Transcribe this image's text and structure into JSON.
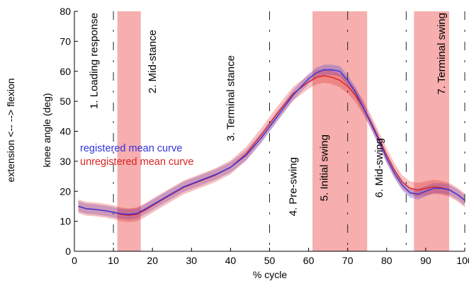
{
  "chart_data": {
    "type": "line",
    "xlabel": "% cycle",
    "ylabel": "knee angle (deg)",
    "side_label": "extension <-- --> flexion",
    "xlim": [
      0,
      100
    ],
    "ylim": [
      0,
      80
    ],
    "xticks": [
      0,
      10,
      20,
      30,
      40,
      50,
      60,
      70,
      80,
      90,
      100
    ],
    "yticks": [
      0,
      10,
      20,
      30,
      40,
      50,
      60,
      70,
      80
    ],
    "grid": false,
    "legend": [
      {
        "label": "registered mean curve",
        "color": "#3333dd"
      },
      {
        "label": "unregistered mean curve",
        "color": "#dd2222"
      }
    ],
    "shaded_regions": [
      {
        "x0": 11,
        "x1": 17,
        "color": "#f4a0a0"
      },
      {
        "x0": 61,
        "x1": 75,
        "color": "#f4a0a0"
      },
      {
        "x0": 87,
        "x1": 96,
        "color": "#f4a0a0"
      }
    ],
    "dashed_lines": [
      10,
      50,
      70,
      85,
      100
    ],
    "phase_labels": [
      {
        "text": "1. Loading response",
        "x": 5
      },
      {
        "text": "2. Mid-stance",
        "x": 20
      },
      {
        "text": "3. Terminal stance",
        "x": 40
      },
      {
        "text": "4. Pre-swing",
        "x": 56
      },
      {
        "text": "5. Initial swing",
        "x": 64
      },
      {
        "text": "6. Mid-swing",
        "x": 78
      },
      {
        "text": "7. Terminal swing",
        "x": 94
      }
    ],
    "series": [
      {
        "name": "registered mean curve",
        "color": "#3333dd",
        "band": 1.7,
        "x": [
          1,
          3,
          5,
          8,
          10,
          12,
          14,
          16,
          18,
          20,
          24,
          28,
          32,
          36,
          40,
          44,
          48,
          52,
          56,
          60,
          62,
          64,
          66,
          68,
          70,
          72,
          74,
          76,
          78,
          80,
          82,
          84,
          86,
          88,
          90,
          92,
          94,
          96,
          98,
          100
        ],
        "y": [
          15,
          14.2,
          14,
          13.5,
          13,
          12.5,
          12.3,
          12.6,
          14,
          15.5,
          18.5,
          21.5,
          23.5,
          25.5,
          28,
          32,
          38,
          45,
          52,
          57.5,
          59.5,
          60.5,
          60.5,
          60,
          57,
          53,
          48,
          42.5,
          37,
          31,
          26,
          22,
          19.5,
          19,
          20,
          21,
          21,
          20.5,
          19,
          17
        ]
      },
      {
        "name": "unregistered mean curve",
        "color": "#dd2222",
        "band": 2.3,
        "x": [
          1,
          3,
          5,
          8,
          10,
          12,
          14,
          16,
          18,
          20,
          24,
          28,
          32,
          36,
          40,
          44,
          48,
          52,
          56,
          60,
          62,
          64,
          66,
          68,
          70,
          72,
          74,
          76,
          78,
          80,
          82,
          84,
          86,
          88,
          90,
          92,
          94,
          96,
          98,
          100
        ],
        "y": [
          15,
          14.2,
          14,
          13.5,
          13,
          12.3,
          12,
          12.3,
          13.6,
          15.2,
          18.3,
          21.3,
          23.3,
          25.3,
          28,
          32.5,
          39,
          46,
          52.5,
          56.5,
          58,
          58.5,
          58,
          57,
          55,
          52,
          48,
          43,
          37.5,
          32,
          27,
          23,
          21,
          20.5,
          21,
          21.5,
          21.2,
          20.5,
          19,
          17
        ]
      }
    ]
  }
}
